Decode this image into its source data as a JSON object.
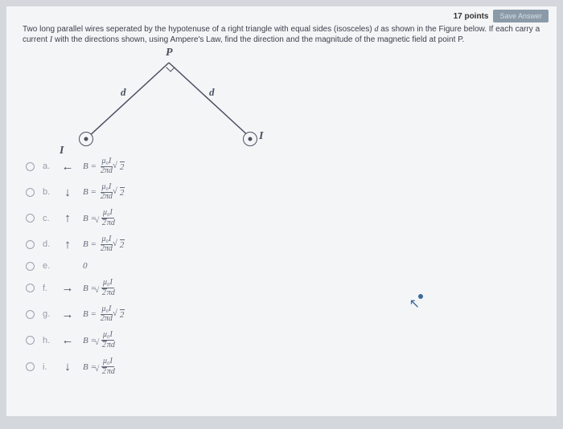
{
  "header": {
    "points_label": "17 points",
    "save_label": "Save Answer"
  },
  "question": {
    "text_part1": "Two long parallel wires seperated by the hypotenuse of a right triangle with equal sides (isosceles) ",
    "var_d": "d",
    "text_part2": " as shown in the Figure below. If each carry a current ",
    "var_I": "I",
    "text_part3": " with the directions shown, using Ampere's Law, find the direction and the magnitude of the magnetic field at point P."
  },
  "diagram": {
    "label_P": "P",
    "label_d_left": "d",
    "label_d_right": "d",
    "label_I_left": "I",
    "label_I_right": "I"
  },
  "options": [
    {
      "key": "a.",
      "arrow": "←",
      "B": "B =",
      "num": "μ₀I",
      "den": "2πd",
      "extra_sqrt": "2",
      "sqrt_in_den": false
    },
    {
      "key": "b.",
      "arrow": "↓",
      "B": "B =",
      "num": "μ₀I",
      "den": "2πd",
      "extra_sqrt": "2",
      "sqrt_in_den": false
    },
    {
      "key": "c.",
      "arrow": "↑",
      "B": "B =",
      "num": "μ₀I",
      "den": "2 πd",
      "extra_sqrt": "",
      "sqrt_in_den": true
    },
    {
      "key": "d.",
      "arrow": "↑",
      "B": "B =",
      "num": "μ₀I",
      "den": "2πd",
      "extra_sqrt": "2",
      "sqrt_in_den": false
    },
    {
      "key": "e.",
      "arrow": "",
      "B": "0",
      "num": "",
      "den": "",
      "extra_sqrt": "",
      "sqrt_in_den": false
    },
    {
      "key": "f.",
      "arrow": "→",
      "B": "B =",
      "num": "μ₀I",
      "den": "2 πd",
      "extra_sqrt": "",
      "sqrt_in_den": true
    },
    {
      "key": "g.",
      "arrow": "→",
      "B": "B =",
      "num": "μ₀I",
      "den": "2πd",
      "extra_sqrt": "2",
      "sqrt_in_den": false
    },
    {
      "key": "h.",
      "arrow": "←",
      "B": "B =",
      "num": "μ₀I",
      "den": "2 πd",
      "extra_sqrt": "",
      "sqrt_in_den": true
    },
    {
      "key": "i.",
      "arrow": "↓",
      "B": "B =",
      "num": "μ₀I",
      "den": "2 πd",
      "extra_sqrt": "",
      "sqrt_in_den": true
    }
  ]
}
